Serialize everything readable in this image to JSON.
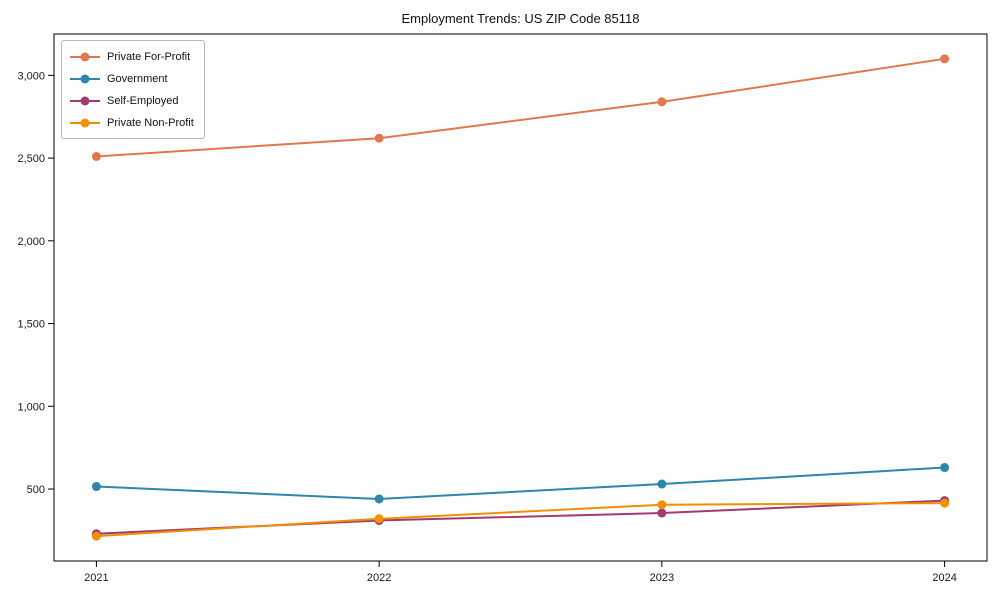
{
  "title": "Employment Trends: US ZIP Code 85118",
  "chart_data": {
    "type": "line",
    "title": "Employment Trends: US ZIP Code 85118",
    "xlabel": "",
    "ylabel": "",
    "x": [
      2021,
      2022,
      2023,
      2024
    ],
    "x_tick_labels": [
      "2021",
      "2022",
      "2023",
      "2024"
    ],
    "series": [
      {
        "name": "Private For-Profit",
        "color": "#e2774d",
        "values": [
          2510,
          2620,
          2840,
          3100
        ]
      },
      {
        "name": "Government",
        "color": "#2e86ab",
        "values": [
          515,
          440,
          530,
          630
        ]
      },
      {
        "name": "Self-Employed",
        "color": "#a23b72",
        "values": [
          230,
          310,
          355,
          430
        ]
      },
      {
        "name": "Private Non-Profit",
        "color": "#f18f01",
        "values": [
          215,
          320,
          405,
          415
        ]
      }
    ],
    "yticks": [
      500,
      1000,
      1500,
      2000,
      2500,
      3000
    ],
    "ytick_labels": [
      "500",
      "1,000",
      "1,500",
      "2,000",
      "2,500",
      "3,000"
    ],
    "ylim": [
      65,
      3250
    ],
    "xlim": [
      2020.85,
      2024.15
    ],
    "grid": false,
    "legend_position": "upper left",
    "marker": "circle",
    "axis_color": "#000000"
  }
}
